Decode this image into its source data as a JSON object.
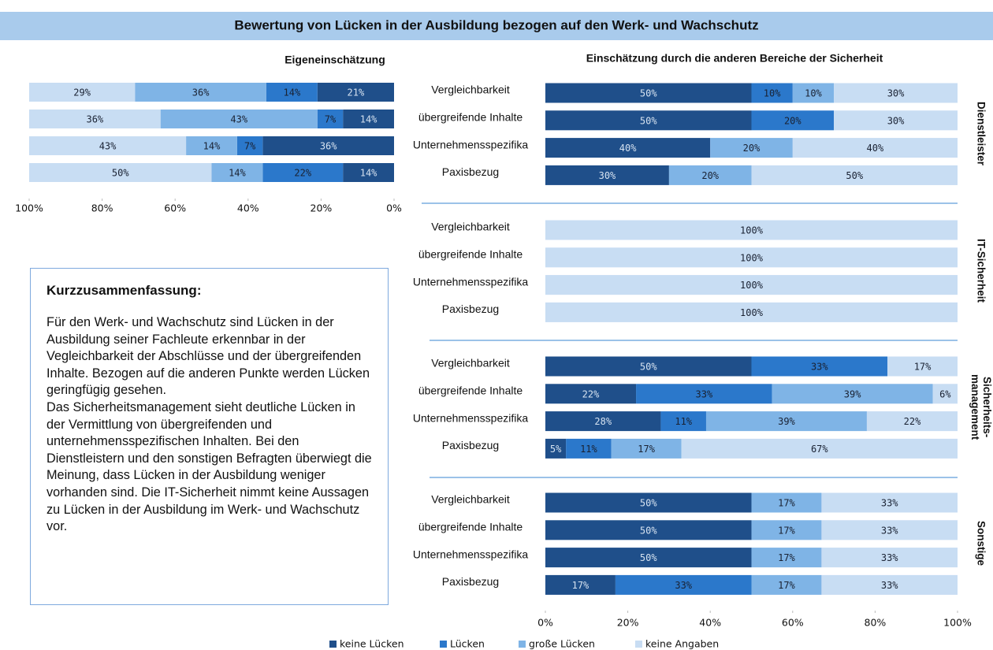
{
  "title": "Bewertung von Lücken in der Ausbildung bezogen auf den Werk- und Wachschutz",
  "summary": {
    "title": "Kurzzusammenfassung:",
    "paragraphs": [
      "Für den Werk- und Wachschutz sind Lücken in der Ausbildung seiner Fachleute erkennbar in der Vegleichbarkeit der Abschlüsse und der übergreifenden Inhalte. Bezogen auf die anderen Punkte werden Lücken geringfügig gesehen.",
      "Das Sicherheitsmanagement sieht deutliche Lücken in der Vermittlung von übergreifenden und unternehmensspezifischen Inhalten. Bei den Dienstleistern und den sonstigen Befragten überwiegt die Meinung, dass Lücken in der Ausbildung weniger vorhanden sind.  Die IT-Sicherheit nimmt keine Aussagen zu Lücken in der Ausbildung im Werk- und Wachschutz vor."
    ]
  },
  "chart_data": [
    {
      "type": "stacked-hbar",
      "title": "Eigeneinschätzung",
      "xlim": [
        100,
        0
      ],
      "xticks": [
        {
          "value": 100,
          "label": "100%"
        },
        {
          "value": 80,
          "label": "80%"
        },
        {
          "value": 60,
          "label": "60%"
        },
        {
          "value": 40,
          "label": "40%"
        },
        {
          "value": 20,
          "label": "20%"
        },
        {
          "value": 0,
          "label": "0%"
        }
      ],
      "series": [
        {
          "color": "#1f4f8a",
          "values": [
            21,
            14,
            36,
            14
          ],
          "value_labels": [
            "21%",
            "14%",
            "36%",
            "14%"
          ]
        },
        {
          "color": "#2b78cb",
          "values": [
            14,
            7,
            7,
            22
          ],
          "value_labels": [
            "14%",
            "7%",
            "7%",
            "22%"
          ]
        },
        {
          "color": "#7fb4e6",
          "values": [
            36,
            43,
            14,
            14
          ],
          "value_labels": [
            "36%",
            "43%",
            "14%",
            "14%"
          ]
        },
        {
          "color": "#c8ddf3",
          "values": [
            29,
            36,
            43,
            50
          ],
          "value_labels": [
            "29%",
            "36%",
            "43%",
            "50%"
          ]
        }
      ]
    },
    {
      "type": "stacked-hbar-panels",
      "title": "Einschätzung durch die anderen Bereiche der Sicherheit",
      "categories": [
        "Vergleichbarkeit",
        "übergreifende Inhalte",
        "Unternehmensspezifika",
        "Paxisbezug"
      ],
      "groups": [
        "Dienstleister",
        "IT-Sicherheit",
        "Sicherheits-management",
        "Sonstige"
      ],
      "xlim": [
        0,
        100
      ],
      "xticks": [
        {
          "value": 0,
          "label": "0%"
        },
        {
          "value": 20,
          "label": "20%"
        },
        {
          "value": 40,
          "label": "40%"
        },
        {
          "value": 60,
          "label": "60%"
        },
        {
          "value": 80,
          "label": "80%"
        },
        {
          "value": 100,
          "label": "100%"
        }
      ],
      "series": [
        {
          "name": "keine Lücken",
          "color": "#1f4f8a",
          "values": [
            [
              50,
              50,
              40,
              30
            ],
            [
              null,
              null,
              null,
              null
            ],
            [
              50,
              22,
              28,
              5
            ],
            [
              50,
              50,
              50,
              17
            ]
          ],
          "value_labels": [
            [
              "50%",
              "50%",
              "40%",
              "30%"
            ],
            [
              null,
              null,
              null,
              null
            ],
            [
              "50%",
              "22%",
              "28%",
              "5%"
            ],
            [
              "50%",
              "50%",
              "50%",
              "17%"
            ]
          ]
        },
        {
          "name": "Lücken",
          "color": "#2b78cb",
          "values": [
            [
              10,
              20,
              null,
              null
            ],
            [
              null,
              null,
              null,
              null
            ],
            [
              33,
              33,
              11,
              11
            ],
            [
              null,
              null,
              null,
              33
            ]
          ],
          "value_labels": [
            [
              "10%",
              "20%",
              null,
              null
            ],
            [
              null,
              null,
              null,
              null
            ],
            [
              "33%",
              "33%",
              "11%",
              "11%"
            ],
            [
              null,
              null,
              null,
              "33%"
            ]
          ]
        },
        {
          "name": "große Lücken",
          "color": "#7fb4e6",
          "values": [
            [
              10,
              null,
              20,
              20
            ],
            [
              null,
              null,
              null,
              null
            ],
            [
              null,
              39,
              39,
              17
            ],
            [
              17,
              17,
              17,
              17
            ]
          ],
          "value_labels": [
            [
              "10%",
              null,
              "20%",
              "20%"
            ],
            [
              null,
              null,
              null,
              null
            ],
            [
              null,
              "39%",
              "39%",
              "17%"
            ],
            [
              "17%",
              "17%",
              "17%",
              "17%"
            ]
          ]
        },
        {
          "name": "keine Angaben",
          "color": "#c8ddf3",
          "values": [
            [
              30,
              30,
              40,
              50
            ],
            [
              100,
              100,
              100,
              100
            ],
            [
              17,
              6,
              22,
              67
            ],
            [
              33,
              33,
              33,
              33
            ]
          ],
          "value_labels": [
            [
              "30%",
              "30%",
              "40%",
              "50%"
            ],
            [
              "100%",
              "100%",
              "100%",
              "100%"
            ],
            [
              "17%",
              "6%",
              "22%",
              "67%"
            ],
            [
              "33%",
              "33%",
              "33%",
              "33%"
            ]
          ]
        }
      ]
    }
  ]
}
